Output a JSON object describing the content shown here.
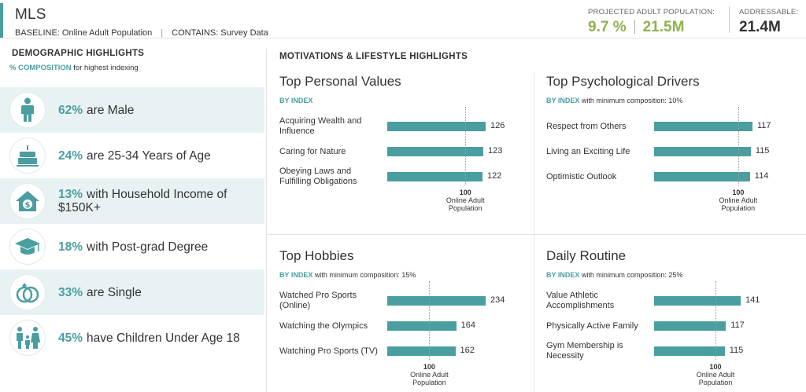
{
  "header": {
    "title": "MLS",
    "baseline": "BASELINE: Online Adult Population",
    "contains": "CONTAINS: Survey Data",
    "separator": "|",
    "projected_label": "PROJECTED ADULT POPULATION:",
    "projected_pct": "9.7 %",
    "projected_count": "21.5M",
    "addressable_label": "ADDRESSABLE:",
    "addressable_value": "21.4M"
  },
  "demographics": {
    "title": "DEMOGRAPHIC HIGHLIGHTS",
    "note_highlight": "% COMPOSITION",
    "note_rest": "for highest indexing",
    "items": [
      {
        "pct": "62%",
        "text": "are Male",
        "icon": "person-icon"
      },
      {
        "pct": "24%",
        "text": "are 25-34 Years of Age",
        "icon": "birthday-cake-icon"
      },
      {
        "pct": "13%",
        "text": "with Household Income of $150K+",
        "icon": "house-dollar-icon"
      },
      {
        "pct": "18%",
        "text": "with Post-grad Degree",
        "icon": "graduation-cap-icon"
      },
      {
        "pct": "33%",
        "text": "are Single",
        "icon": "rings-icon"
      },
      {
        "pct": "45%",
        "text": "have Children Under Age 18",
        "icon": "family-icon"
      }
    ]
  },
  "motivations": {
    "title": "MOTIVATIONS & LIFESTYLE HIGHLIGHTS",
    "by_index": "BY INDEX",
    "ref_value": "100",
    "ref_label": "Online Adult Population",
    "panels": [
      {
        "title": "Top Personal Values",
        "min_note": "",
        "items": [
          {
            "label": "Acquiring Wealth and Influence",
            "value": 126
          },
          {
            "label": "Caring for Nature",
            "value": 123
          },
          {
            "label": "Obeying Laws and Fulfilling Obligations",
            "value": 122
          }
        ]
      },
      {
        "title": "Top Psychological Drivers",
        "min_note": "with minimum composition: 10%",
        "items": [
          {
            "label": "Respect from Others",
            "value": 117
          },
          {
            "label": "Living an Exciting Life",
            "value": 115
          },
          {
            "label": "Optimistic Outlook",
            "value": 114
          }
        ]
      },
      {
        "title": "Top Hobbies",
        "min_note": "with minimum composition: 15%",
        "items": [
          {
            "label": "Watched Pro Sports (Online)",
            "value": 234
          },
          {
            "label": "Watching the Olympics",
            "value": 164
          },
          {
            "label": "Watching Pro Sports (TV)",
            "value": 162
          }
        ]
      },
      {
        "title": "Daily Routine",
        "min_note": "with minimum composition: 25%",
        "items": [
          {
            "label": "Value Athletic Accomplishments",
            "value": 141
          },
          {
            "label": "Physically Active Family",
            "value": 117
          },
          {
            "label": "Gym Membership is Necessity",
            "value": 115
          }
        ]
      }
    ]
  },
  "colors": {
    "accent": "#4a9ea0",
    "green": "#8fb24d",
    "shade": "#e8f2f2"
  }
}
